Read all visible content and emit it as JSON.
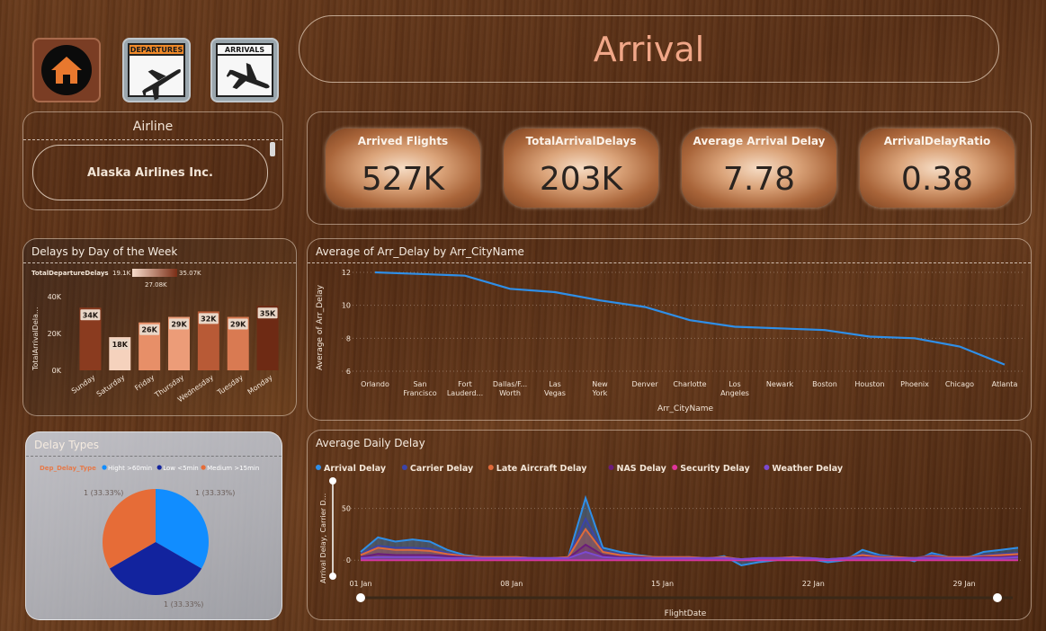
{
  "header": {
    "title": "Arrival"
  },
  "nav": {
    "home_icon": "home-icon",
    "departures_label": "DEPARTURES",
    "arrivals_label": "ARRIVALS"
  },
  "slicer": {
    "title": "Airline",
    "selected": "Alaska Airlines Inc."
  },
  "kpis": [
    {
      "label": "Arrived Flights",
      "value": "527K"
    },
    {
      "label": "TotalArrivalDelays",
      "value": "203K"
    },
    {
      "label": "Average Arrival Delay",
      "value": "7.78"
    },
    {
      "label": "ArrivalDelayRatio",
      "value": "0.38"
    }
  ],
  "colors": {
    "accent_title": "#f1a788",
    "line_blue": "#2f8fe8",
    "pie_blue": "#118dff",
    "pie_navy": "#12239e",
    "pie_orange": "#e66c37"
  },
  "chart_data": [
    {
      "type": "bar",
      "title": "Delays by Day of the Week",
      "ylabel": "TotalArrivalDela...",
      "legend_title": "TotalDepartureDelays",
      "legend_min": "19.1K",
      "legend_mid": "27.08K",
      "legend_max": "35.07K",
      "categories": [
        "Sunday",
        "Saturday",
        "Friday",
        "Thursday",
        "Wednesday",
        "Tuesday",
        "Monday"
      ],
      "values": [
        34,
        18,
        26,
        29,
        32,
        29,
        35
      ],
      "data_labels": [
        "34K",
        "18K",
        "26K",
        "29K",
        "32K",
        "29K",
        "35K"
      ],
      "colors": [
        "#8a3b1f",
        "#f5d2bd",
        "#e78f68",
        "#ec9c78",
        "#b85a36",
        "#d97a52",
        "#6e2a14"
      ],
      "ylim": [
        0,
        40
      ],
      "yticks": [
        "0K",
        "20K",
        "40K"
      ]
    },
    {
      "type": "line",
      "title": "Average of Arr_Delay by Arr_CityName",
      "xlabel": "Arr_CityName",
      "ylabel": "Average of Arr_Delay",
      "categories": [
        "Orlando",
        "San Francisco",
        "Fort Lauderd...",
        "Dallas/F... Worth",
        "Las Vegas",
        "New York",
        "Denver",
        "Charlotte",
        "Los Angeles",
        "Newark",
        "Boston",
        "Houston",
        "Phoenix",
        "Chicago",
        "Atlanta"
      ],
      "values": [
        12.0,
        11.9,
        11.8,
        11.0,
        10.8,
        10.3,
        9.9,
        9.1,
        8.7,
        8.6,
        8.5,
        8.1,
        8.0,
        7.5,
        6.4
      ],
      "ylim": [
        6,
        12
      ],
      "yticks": [
        6,
        8,
        10,
        12
      ]
    },
    {
      "type": "pie",
      "title": "Delay Types",
      "legend_title": "Dep_Delay_Type",
      "labels": [
        "Hight >60min",
        "Low <5min",
        "Medium >15min"
      ],
      "values": [
        1,
        1,
        1
      ],
      "data_labels": [
        "1 (33.33%)",
        "1 (33.33%)",
        "1 (33.33%)"
      ],
      "colors": [
        "#118dff",
        "#12239e",
        "#e66c37"
      ]
    },
    {
      "type": "area",
      "title": "Average Daily Delay",
      "xlabel": "FlightDate",
      "ylabel": "Arrival Delay, Carrier D...",
      "xticks": [
        "01 Jan",
        "08 Jan",
        "15 Jan",
        "22 Jan",
        "29 Jan"
      ],
      "yticks": [
        0,
        50
      ],
      "ylim": [
        -5,
        80
      ],
      "series": [
        {
          "name": "Arrival Delay",
          "color": "#2f8fe8",
          "values": [
            8,
            22,
            18,
            20,
            18,
            10,
            5,
            3,
            2,
            3,
            2,
            1,
            3,
            60,
            12,
            8,
            5,
            3,
            2,
            3,
            1,
            4,
            -5,
            -2,
            0,
            3,
            1,
            -2,
            0,
            10,
            5,
            3,
            -1,
            7,
            3,
            2,
            8,
            10,
            12
          ]
        },
        {
          "name": "Carrier Delay",
          "color": "#3b44a8",
          "values": [
            6,
            14,
            12,
            12,
            11,
            7,
            4,
            3,
            3,
            3,
            2,
            2,
            3,
            40,
            9,
            6,
            4,
            3,
            3,
            3,
            2,
            3,
            1,
            2,
            2,
            3,
            2,
            1,
            2,
            6,
            4,
            3,
            2,
            5,
            3,
            3,
            5,
            6,
            7
          ]
        },
        {
          "name": "Late Aircraft Delay",
          "color": "#e06a3a",
          "values": [
            5,
            12,
            10,
            10,
            9,
            6,
            4,
            3,
            3,
            3,
            2,
            2,
            3,
            30,
            8,
            5,
            4,
            3,
            3,
            3,
            2,
            3,
            1,
            2,
            2,
            3,
            2,
            1,
            2,
            5,
            3,
            3,
            2,
            4,
            3,
            3,
            4,
            5,
            6
          ]
        },
        {
          "name": "NAS Delay",
          "color": "#6b1c7a",
          "values": [
            3,
            6,
            5,
            5,
            5,
            4,
            3,
            2,
            2,
            2,
            2,
            2,
            2,
            15,
            5,
            3,
            3,
            2,
            2,
            2,
            2,
            2,
            1,
            2,
            2,
            2,
            2,
            1,
            2,
            3,
            2,
            2,
            2,
            3,
            2,
            2,
            3,
            3,
            4
          ]
        },
        {
          "name": "Security Delay",
          "color": "#e0359a",
          "values": [
            0,
            0,
            0,
            0,
            0,
            0,
            0,
            0,
            0,
            0,
            0,
            0,
            0,
            0,
            0,
            0,
            0,
            0,
            0,
            0,
            0,
            0,
            0,
            0,
            0,
            0,
            0,
            0,
            0,
            0,
            0,
            0,
            0,
            0,
            0,
            0,
            0,
            0,
            0
          ]
        },
        {
          "name": "Weather Delay",
          "color": "#7b4ad0",
          "values": [
            2,
            3,
            3,
            3,
            3,
            2,
            2,
            2,
            2,
            2,
            2,
            2,
            2,
            8,
            3,
            2,
            2,
            2,
            2,
            2,
            2,
            2,
            1,
            2,
            2,
            2,
            2,
            1,
            2,
            2,
            2,
            2,
            2,
            2,
            2,
            2,
            2,
            2,
            3
          ]
        }
      ]
    }
  ]
}
